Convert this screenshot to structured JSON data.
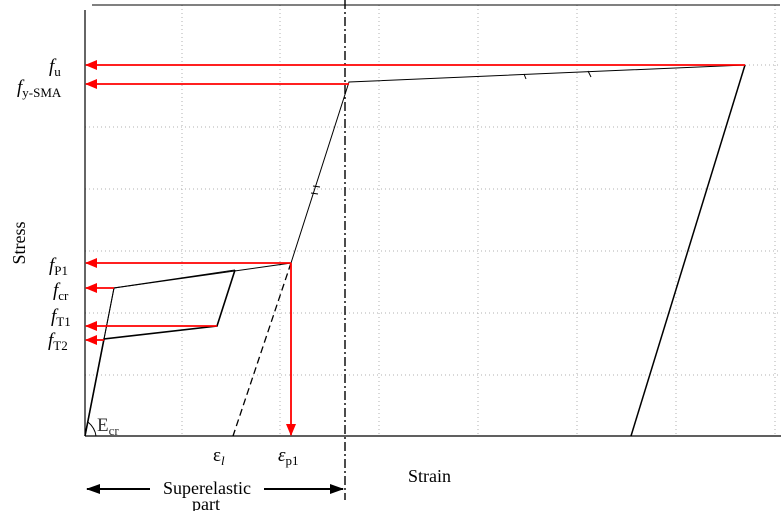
{
  "colors": {
    "curve": "#000000",
    "arrow": "#ff0000",
    "grid": "#b0b0b0"
  },
  "labels": {
    "fu": {
      "main": "f",
      "sub": "u"
    },
    "fy_sma": {
      "main": "f",
      "sub": "y-SMA"
    },
    "fp1": {
      "main": "f",
      "sub": "P1"
    },
    "fcr": {
      "main": "f",
      "sub": "cr"
    },
    "ft1": {
      "main": "f",
      "sub": "T1"
    },
    "ft2": {
      "main": "f",
      "sub": "T2"
    },
    "e_cr": {
      "main": "E",
      "sub": "cr"
    },
    "eps_l": {
      "main": "ε",
      "sub": "l"
    },
    "eps_p1": {
      "main": "ε",
      "sub": "p1"
    },
    "x_axis": "Strain",
    "y_axis": "Stress",
    "superelastic_line1": "Superelastic",
    "superelastic_line2": "part"
  }
}
